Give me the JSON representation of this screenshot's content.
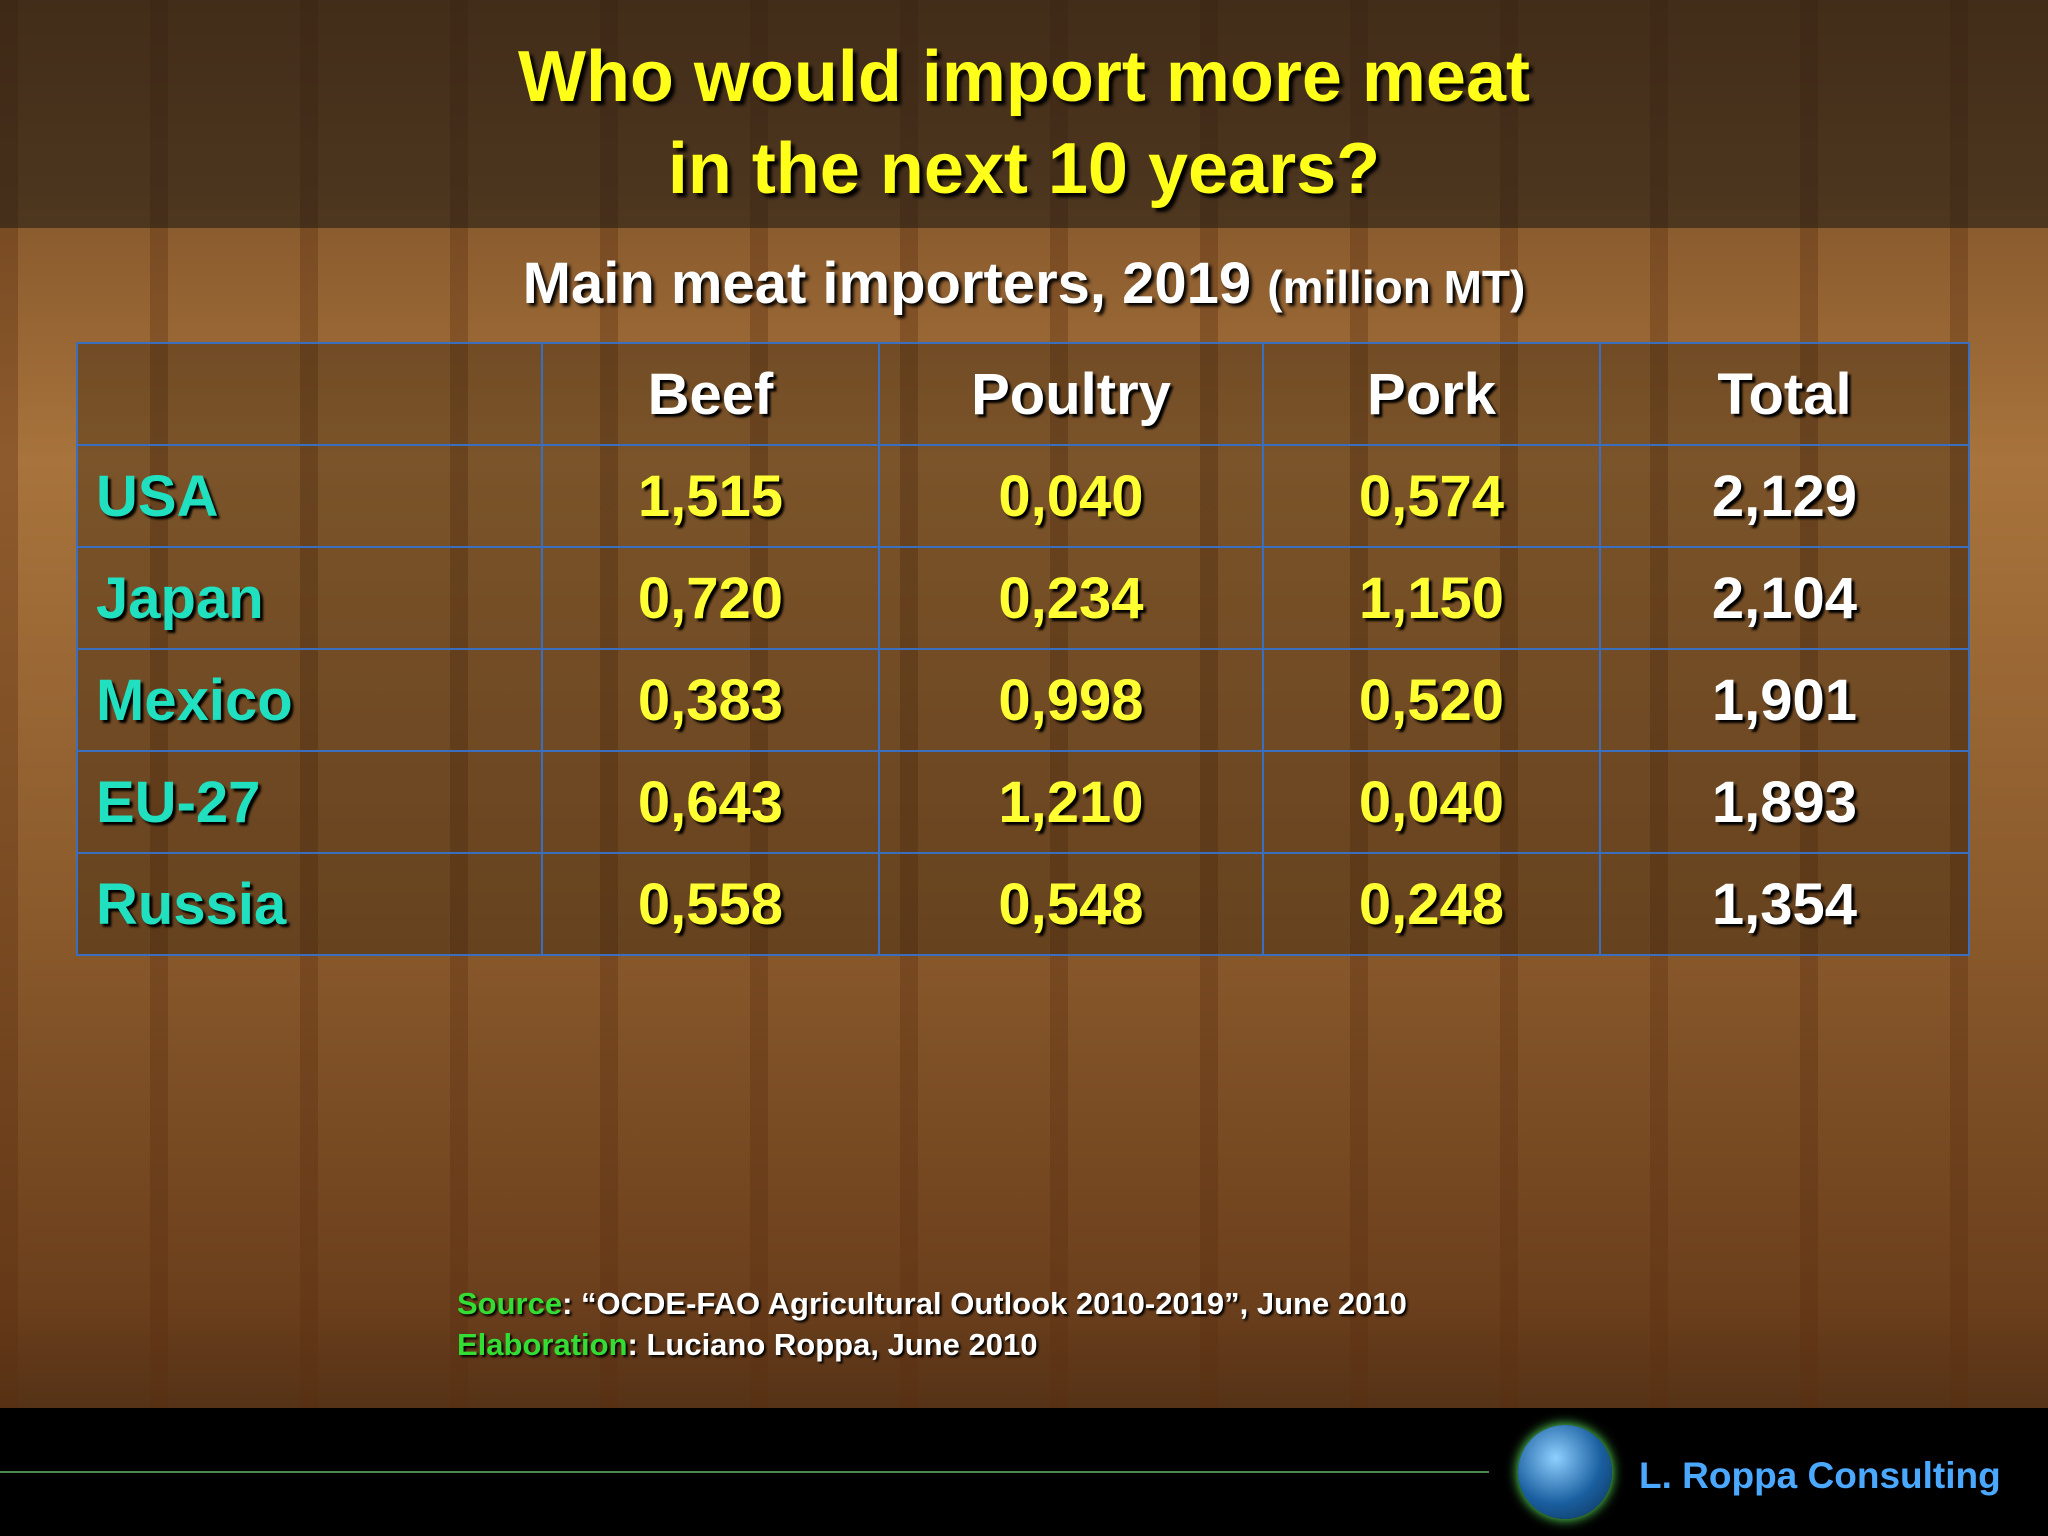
{
  "header": {
    "title": [
      "Who would import more meat",
      "in the next 10 years?"
    ]
  },
  "subtitle": {
    "main": "Main meat importers, 2019",
    "unit": "(million MT)"
  },
  "table": {
    "columns": [
      "Beef",
      "Poultry",
      "Pork",
      "Total"
    ],
    "rows": [
      {
        "label": "USA",
        "values": [
          "1,515",
          "0,040",
          "0,574",
          "2,129"
        ]
      },
      {
        "label": "Japan",
        "values": [
          "0,720",
          "0,234",
          "1,150",
          "2,104"
        ]
      },
      {
        "label": "Mexico",
        "values": [
          "0,383",
          "0,998",
          "0,520",
          "1,901"
        ]
      },
      {
        "label": "EU-27",
        "values": [
          "0,643",
          "1,210",
          "0,040",
          "1,893"
        ]
      },
      {
        "label": "Russia",
        "values": [
          "0,558",
          "0,548",
          "0,248",
          "1,354"
        ]
      }
    ]
  },
  "source": {
    "label": "Source",
    "text": ": “OCDE-FAO Agricultural Outlook 2010-2019”, June 2010"
  },
  "elaboration": {
    "label": "Elaboration",
    "text": ": Luciano Roppa, June 2010"
  },
  "footer": {
    "brand": "L. Roppa Consulting"
  }
}
